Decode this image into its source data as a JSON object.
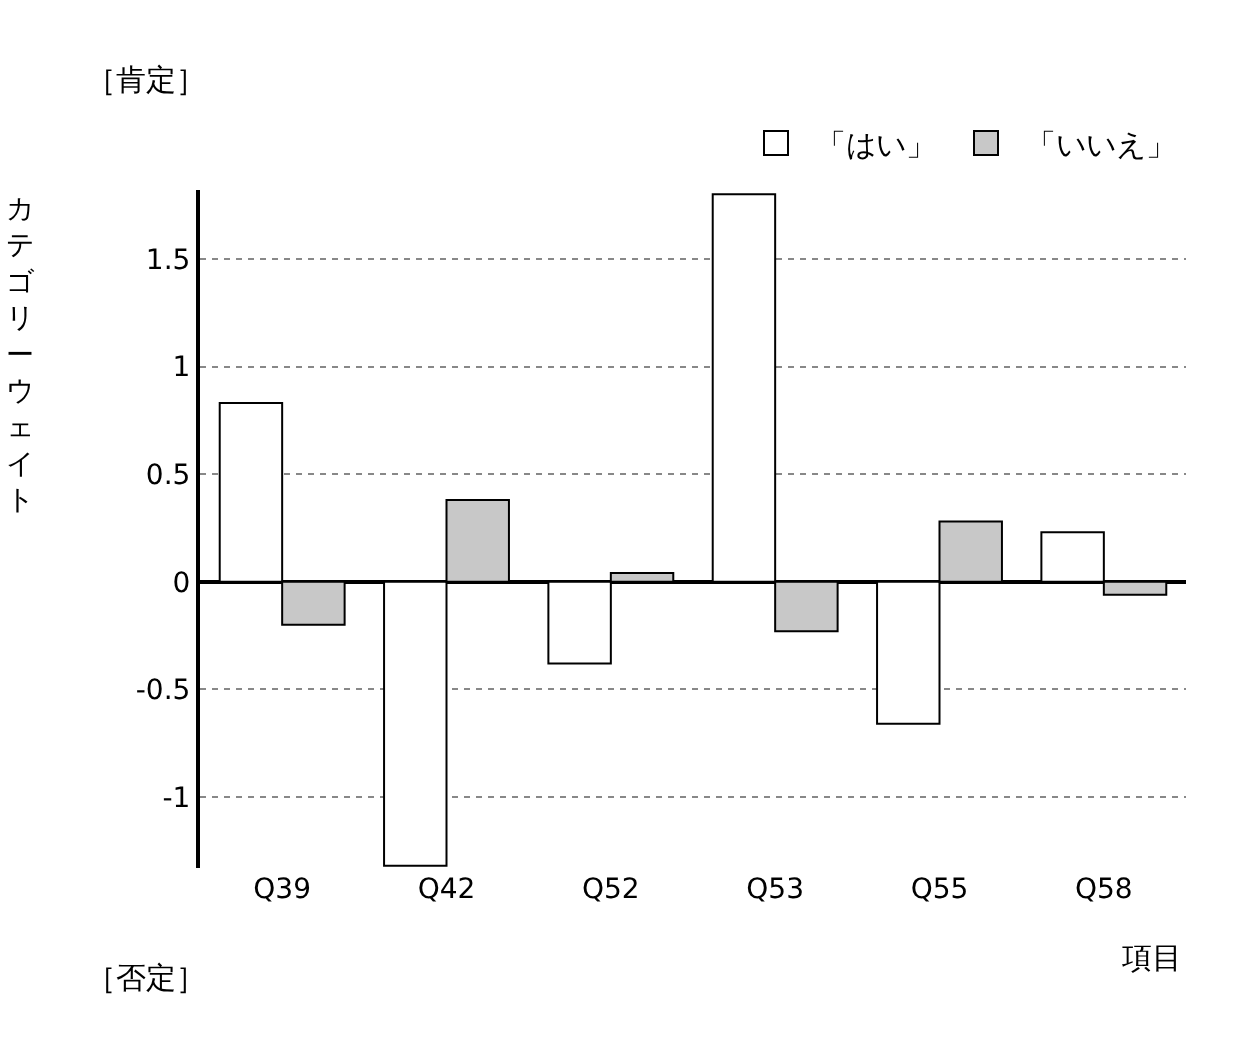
{
  "chart_data": {
    "type": "bar",
    "categories": [
      "Q39",
      "Q42",
      "Q52",
      "Q53",
      "Q55",
      "Q58"
    ],
    "series": [
      {
        "name": "「はい」",
        "color": "#ffffff",
        "values": [
          0.83,
          -1.32,
          -0.38,
          1.8,
          -0.66,
          0.23
        ]
      },
      {
        "name": "「いいえ」",
        "color": "#c8c8c8",
        "values": [
          -0.2,
          0.38,
          0.04,
          -0.23,
          0.28,
          -0.06
        ]
      }
    ],
    "ylabel": "カテゴリーウェイト",
    "xlabel": "項目",
    "annotations": [
      "［肯定］",
      "［否定］"
    ],
    "ylim": [
      -1.33,
      1.82
    ],
    "yticks": [
      -1,
      -0.5,
      0,
      0.5,
      1,
      1.5
    ],
    "grid": "y",
    "legend": "top right"
  }
}
